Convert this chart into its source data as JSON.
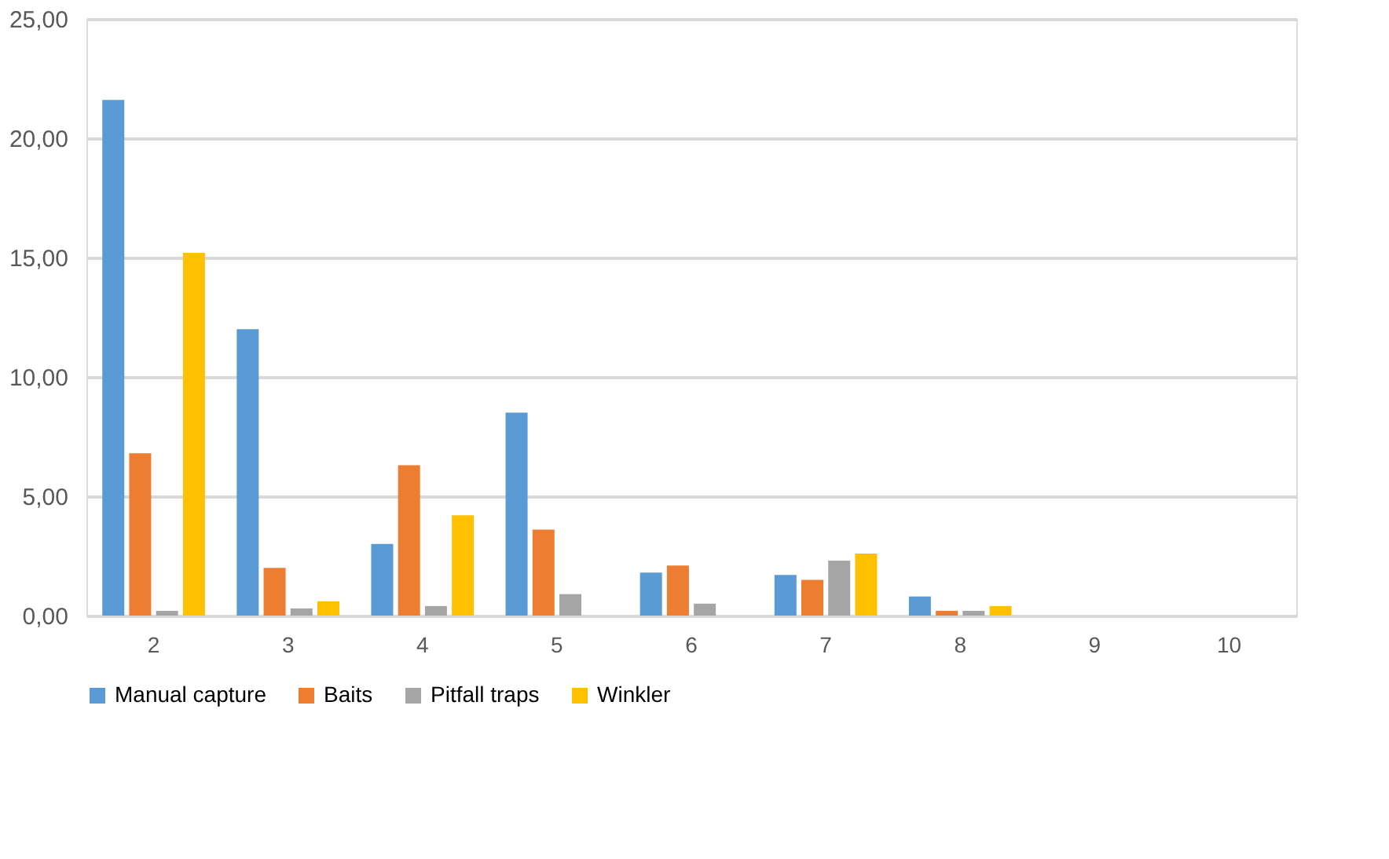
{
  "chart_data": {
    "type": "bar",
    "categories": [
      "2",
      "3",
      "4",
      "5",
      "6",
      "7",
      "8",
      "9",
      "10"
    ],
    "series": [
      {
        "name": "Manual capture",
        "color": "#5b9bd5",
        "values": [
          21.6,
          12.0,
          3.0,
          8.5,
          1.8,
          1.7,
          0.8,
          0,
          0
        ]
      },
      {
        "name": "Baits",
        "color": "#ed7d31",
        "values": [
          6.8,
          2.0,
          6.3,
          3.6,
          2.1,
          1.5,
          0.2,
          0,
          0
        ]
      },
      {
        "name": "Pitfall traps",
        "color": "#a5a5a5",
        "values": [
          0.2,
          0.3,
          0.4,
          0.9,
          0.5,
          2.3,
          0.2,
          0,
          0
        ]
      },
      {
        "name": "Winkler",
        "color": "#ffc000",
        "values": [
          15.2,
          0.6,
          4.2,
          0,
          0,
          2.6,
          0.4,
          0,
          0
        ]
      }
    ],
    "ylim": [
      0,
      25
    ],
    "yticks": [
      {
        "value": 0,
        "label": "0,00"
      },
      {
        "value": 5,
        "label": "5,00"
      },
      {
        "value": 10,
        "label": "10,00"
      },
      {
        "value": 15,
        "label": "15,00"
      },
      {
        "value": 20,
        "label": "20,00"
      },
      {
        "value": 25,
        "label": "25,00"
      }
    ],
    "grid": "y",
    "legend": "bottom"
  }
}
